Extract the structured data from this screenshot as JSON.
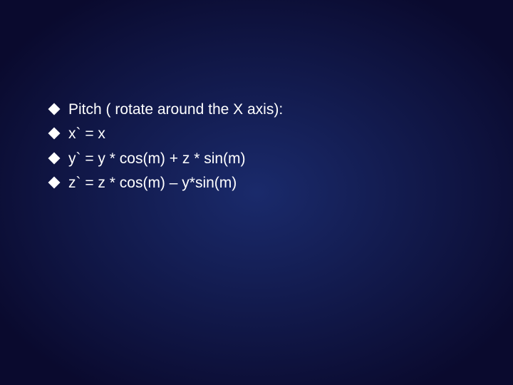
{
  "slide": {
    "background_gradient": {
      "type": "radial",
      "center_color": "#1a2a6b",
      "edge_color": "#0a0a2e"
    },
    "text_color": "#ffffff",
    "bullet_color": "#ffffff",
    "font_family": "Arial",
    "body_fontsize": 21,
    "bullets": [
      {
        "text": "Pitch ( rotate around the X axis):"
      },
      {
        "text": "x` = x"
      },
      {
        "text": "y` = y * cos(m) + z * sin(m)"
      },
      {
        "text": "z` = z * cos(m) – y*sin(m)"
      }
    ]
  }
}
